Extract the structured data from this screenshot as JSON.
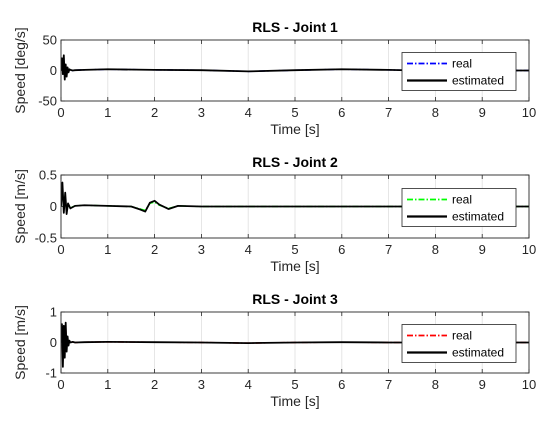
{
  "chart_data": [
    {
      "type": "line",
      "title": "RLS - Joint 1",
      "xlabel": "Time [s]",
      "ylabel": "Speed [deg/s]",
      "xlim": [
        0,
        10
      ],
      "ylim": [
        -50,
        50
      ],
      "xticks": [
        0,
        1,
        2,
        3,
        4,
        5,
        6,
        7,
        8,
        9,
        10
      ],
      "yticks": [
        -50,
        0,
        50
      ],
      "grid": "vertical",
      "legend": "right",
      "series": [
        {
          "name": "real",
          "color": "#0000ff",
          "dash": "dashdot",
          "x": [
            0,
            0.02,
            0.04,
            0.06,
            0.08,
            0.1,
            0.12,
            0.14,
            0.16,
            0.18,
            0.2,
            0.25,
            0.3,
            0.5,
            1,
            2,
            3,
            4,
            5,
            6,
            7,
            7.6,
            10
          ],
          "y": [
            0,
            18,
            -5,
            22,
            -12,
            8,
            -8,
            4,
            -2,
            1,
            0.5,
            0,
            0.5,
            1,
            2,
            1,
            0.5,
            -1.5,
            0.5,
            2,
            1,
            0,
            0
          ]
        },
        {
          "name": "estimated",
          "color": "#000000",
          "dash": "solid",
          "x": [
            0,
            0.02,
            0.04,
            0.06,
            0.08,
            0.1,
            0.12,
            0.14,
            0.16,
            0.18,
            0.2,
            0.25,
            0.3,
            0.5,
            1,
            2,
            3,
            4,
            5,
            6,
            7,
            7.6,
            10
          ],
          "y": [
            0,
            20,
            -6,
            25,
            -15,
            10,
            -10,
            5,
            -3,
            2,
            1,
            0,
            0.5,
            1,
            2,
            1,
            0.5,
            -1.5,
            0.5,
            2,
            1,
            0,
            0
          ]
        }
      ]
    },
    {
      "type": "line",
      "title": "RLS - Joint 2",
      "xlabel": "Time [s]",
      "ylabel": "Speed [m/s]",
      "xlim": [
        0,
        10
      ],
      "ylim": [
        -0.5,
        0.5
      ],
      "xticks": [
        0,
        1,
        2,
        3,
        4,
        5,
        6,
        7,
        8,
        9,
        10
      ],
      "yticks": [
        -0.5,
        0,
        0.5
      ],
      "grid": "vertical",
      "legend": "right",
      "series": [
        {
          "name": "real",
          "color": "#00ff00",
          "dash": "dashdot",
          "x": [
            0,
            0.03,
            0.06,
            0.09,
            0.12,
            0.15,
            0.2,
            0.3,
            0.5,
            1,
            1.5,
            1.7,
            1.8,
            1.9,
            2.0,
            2.1,
            2.3,
            2.5,
            3,
            10
          ],
          "y": [
            0,
            0.3,
            -0.05,
            0.15,
            -0.08,
            0.03,
            -0.02,
            0.01,
            0.02,
            0.01,
            0,
            -0.04,
            -0.06,
            0.05,
            0.07,
            0.02,
            -0.03,
            0.01,
            0,
            0
          ]
        },
        {
          "name": "estimated",
          "color": "#000000",
          "dash": "solid",
          "x": [
            0,
            0.03,
            0.06,
            0.09,
            0.12,
            0.15,
            0.2,
            0.3,
            0.5,
            1,
            1.5,
            1.7,
            1.8,
            1.9,
            2.0,
            2.1,
            2.3,
            2.5,
            3,
            10
          ],
          "y": [
            0,
            0.38,
            -0.1,
            0.22,
            -0.12,
            0.05,
            -0.03,
            0.01,
            0.02,
            0.01,
            0,
            -0.05,
            -0.08,
            0.06,
            0.09,
            0.03,
            -0.04,
            0.01,
            0,
            0
          ]
        }
      ]
    },
    {
      "type": "line",
      "title": "RLS - Joint 3",
      "xlabel": "Time [s]",
      "ylabel": "Speed [m/s]",
      "xlim": [
        0,
        10
      ],
      "ylim": [
        -1,
        1
      ],
      "xticks": [
        0,
        1,
        2,
        3,
        4,
        5,
        6,
        7,
        8,
        9,
        10
      ],
      "yticks": [
        -1,
        0,
        1
      ],
      "grid": "vertical",
      "legend": "right",
      "series": [
        {
          "name": "real",
          "color": "#ff0000",
          "dash": "dashdot",
          "x": [
            0,
            0.02,
            0.04,
            0.06,
            0.08,
            0.1,
            0.12,
            0.14,
            0.16,
            0.18,
            0.2,
            0.25,
            0.3,
            0.5,
            1,
            2,
            3,
            4,
            5,
            6,
            7,
            8,
            10
          ],
          "y": [
            0,
            0.5,
            -0.6,
            0.45,
            -0.4,
            0.55,
            -0.2,
            0.15,
            -0.08,
            0.05,
            0,
            0.02,
            0,
            0.01,
            0.02,
            0.01,
            0,
            -0.02,
            0,
            0.01,
            0,
            0,
            0
          ]
        },
        {
          "name": "estimated",
          "color": "#000000",
          "dash": "solid",
          "x": [
            0,
            0.02,
            0.04,
            0.06,
            0.08,
            0.1,
            0.12,
            0.14,
            0.16,
            0.18,
            0.2,
            0.25,
            0.3,
            0.5,
            1,
            2,
            3,
            4,
            5,
            6,
            7,
            8,
            10
          ],
          "y": [
            0,
            0.6,
            -0.8,
            0.55,
            -0.5,
            0.65,
            -0.3,
            0.2,
            -0.1,
            0.06,
            0,
            0.02,
            0,
            0.01,
            0.02,
            0.01,
            0,
            -0.02,
            0,
            0.01,
            0,
            0,
            0
          ]
        }
      ]
    }
  ]
}
